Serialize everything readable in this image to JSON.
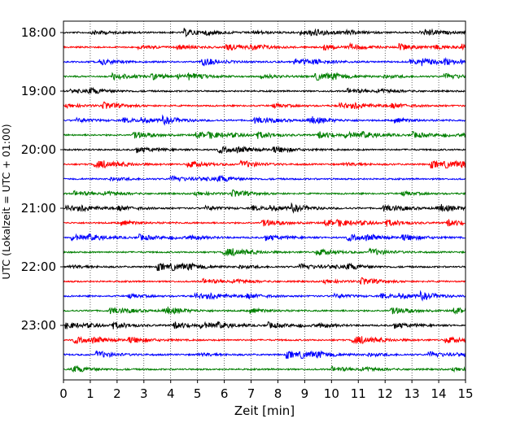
{
  "chart_data": {
    "type": "line",
    "title": "",
    "xlabel": "Zeit  [min]",
    "ylabel": "UTC (Lokalzeit = UTC + 01:00)",
    "xlim": [
      0,
      15
    ],
    "x_ticks": [
      "0",
      "1",
      "2",
      "3",
      "4",
      "5",
      "6",
      "7",
      "8",
      "9",
      "10",
      "11",
      "12",
      "13",
      "14",
      "15"
    ],
    "x_grid": "dotted vertical at each minute",
    "y_tick_labels": [
      "18:00",
      "19:00",
      "20:00",
      "21:00",
      "22:00",
      "23:00"
    ],
    "trace_interval_minutes": 15,
    "colors": [
      "#000000",
      "#ff0000",
      "#0000ff",
      "#007f00"
    ],
    "series": [
      {
        "start": "18:00",
        "color": "#000000"
      },
      {
        "start": "18:15",
        "color": "#ff0000"
      },
      {
        "start": "18:30",
        "color": "#0000ff"
      },
      {
        "start": "18:45",
        "color": "#007f00"
      },
      {
        "start": "19:00",
        "color": "#000000"
      },
      {
        "start": "19:15",
        "color": "#ff0000"
      },
      {
        "start": "19:30",
        "color": "#0000ff"
      },
      {
        "start": "19:45",
        "color": "#007f00"
      },
      {
        "start": "20:00",
        "color": "#000000"
      },
      {
        "start": "20:15",
        "color": "#ff0000"
      },
      {
        "start": "20:30",
        "color": "#0000ff"
      },
      {
        "start": "20:45",
        "color": "#007f00"
      },
      {
        "start": "21:00",
        "color": "#000000"
      },
      {
        "start": "21:15",
        "color": "#ff0000"
      },
      {
        "start": "21:30",
        "color": "#0000ff"
      },
      {
        "start": "21:45",
        "color": "#007f00"
      },
      {
        "start": "22:00",
        "color": "#000000"
      },
      {
        "start": "22:15",
        "color": "#ff0000"
      },
      {
        "start": "22:30",
        "color": "#0000ff"
      },
      {
        "start": "22:45",
        "color": "#007f00"
      },
      {
        "start": "23:00",
        "color": "#000000"
      },
      {
        "start": "23:15",
        "color": "#ff0000"
      },
      {
        "start": "23:30",
        "color": "#0000ff"
      },
      {
        "start": "23:45",
        "color": "#007f00"
      }
    ]
  }
}
